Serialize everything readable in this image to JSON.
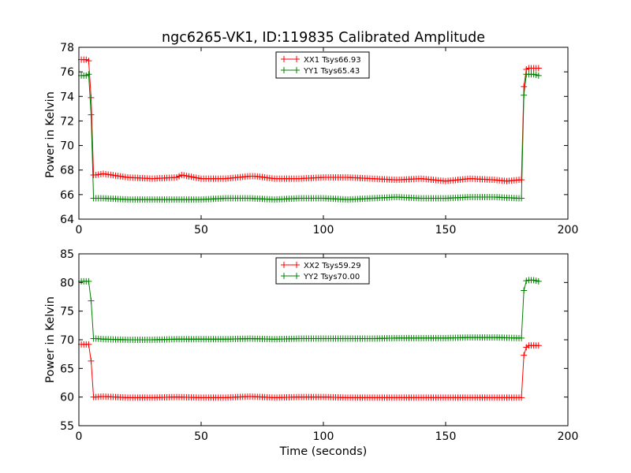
{
  "chart_data": {
    "title": "ngc6265-VK1, ID:119835 Calibrated Amplitude",
    "xlabel": "Time (seconds)",
    "panels": [
      {
        "type": "line",
        "ylabel": "Power in Kelvin",
        "xlim": [
          0,
          200
        ],
        "ylim": [
          64,
          78
        ],
        "xticks": [
          "0",
          "50",
          "100",
          "150",
          "200"
        ],
        "yticks": [
          "64",
          "66",
          "68",
          "70",
          "72",
          "74",
          "76",
          "78"
        ],
        "legend_position": "top-center",
        "series": [
          {
            "name": "XX1 Tsys66.93",
            "color": "#ff0000",
            "marker": "plus",
            "segments": [
              {
                "x": [
                  1,
                  2,
                  3,
                  4,
                  5,
                  6
                ],
                "y": [
                  77.0,
                  77.0,
                  77.0,
                  76.9,
                  73.9,
                  67.6
                ]
              },
              {
                "x": [
                  7,
                  10,
                  20,
                  30,
                  40,
                  42,
                  50,
                  60,
                  70,
                  72,
                  80,
                  90,
                  100,
                  110,
                  120,
                  130,
                  140,
                  150,
                  160,
                  170,
                  175,
                  180
                ],
                "y": [
                  67.6,
                  67.7,
                  67.4,
                  67.3,
                  67.4,
                  67.6,
                  67.3,
                  67.3,
                  67.5,
                  67.5,
                  67.3,
                  67.3,
                  67.4,
                  67.4,
                  67.3,
                  67.2,
                  67.3,
                  67.1,
                  67.3,
                  67.2,
                  67.1,
                  67.2
                ]
              },
              {
                "x": [
                  181,
                  182,
                  183,
                  184,
                  186,
                  188
                ],
                "y": [
                  67.2,
                  74.8,
                  76.2,
                  76.3,
                  76.3,
                  76.3
                ]
              }
            ]
          },
          {
            "name": "YY1 Tsys65.43",
            "color": "#008000",
            "marker": "plus",
            "segments": [
              {
                "x": [
                  1,
                  2,
                  3,
                  4,
                  5,
                  6
                ],
                "y": [
                  75.7,
                  75.7,
                  75.7,
                  75.8,
                  72.5,
                  65.7
                ]
              },
              {
                "x": [
                  7,
                  10,
                  20,
                  30,
                  40,
                  50,
                  60,
                  70,
                  80,
                  90,
                  100,
                  110,
                  120,
                  130,
                  140,
                  150,
                  160,
                  170,
                  180
                ],
                "y": [
                  65.7,
                  65.7,
                  65.6,
                  65.6,
                  65.6,
                  65.6,
                  65.7,
                  65.7,
                  65.6,
                  65.7,
                  65.7,
                  65.6,
                  65.7,
                  65.8,
                  65.7,
                  65.7,
                  65.8,
                  65.8,
                  65.7
                ]
              },
              {
                "x": [
                  181,
                  182,
                  183,
                  184,
                  186,
                  188
                ],
                "y": [
                  65.7,
                  74.1,
                  75.8,
                  75.8,
                  75.8,
                  75.7
                ]
              }
            ]
          }
        ]
      },
      {
        "type": "line",
        "ylabel": "Power in Kelvin",
        "xlabel": "Time (seconds)",
        "xlim": [
          0,
          200
        ],
        "ylim": [
          55,
          85
        ],
        "xticks": [
          "0",
          "50",
          "100",
          "150",
          "200"
        ],
        "yticks": [
          "55",
          "60",
          "65",
          "70",
          "75",
          "80",
          "85"
        ],
        "legend_position": "top-center",
        "series": [
          {
            "name": "XX2 Tsys59.29",
            "color": "#ff0000",
            "marker": "plus",
            "segments": [
              {
                "x": [
                  1,
                  2,
                  3,
                  4,
                  5,
                  6
                ],
                "y": [
                  69.2,
                  69.2,
                  69.2,
                  69.2,
                  66.3,
                  60.0
                ]
              },
              {
                "x": [
                  7,
                  10,
                  20,
                  30,
                  40,
                  50,
                  60,
                  70,
                  80,
                  90,
                  100,
                  110,
                  120,
                  130,
                  140,
                  150,
                  160,
                  170,
                  180
                ],
                "y": [
                  60.0,
                  60.1,
                  59.9,
                  59.9,
                  60.0,
                  59.9,
                  59.9,
                  60.1,
                  59.9,
                  60.0,
                  60.0,
                  59.9,
                  59.9,
                  59.9,
                  59.9,
                  59.9,
                  59.9,
                  59.9,
                  59.9
                ]
              },
              {
                "x": [
                  181,
                  182,
                  183,
                  184,
                  186,
                  188
                ],
                "y": [
                  59.9,
                  67.3,
                  68.7,
                  69.0,
                  69.0,
                  69.0
                ]
              }
            ]
          },
          {
            "name": "YY2 Tsys70.00",
            "color": "#008000",
            "marker": "plus",
            "segments": [
              {
                "x": [
                  1,
                  2,
                  3,
                  4,
                  5,
                  6
                ],
                "y": [
                  80.2,
                  80.2,
                  80.2,
                  80.2,
                  76.8,
                  70.2
                ]
              },
              {
                "x": [
                  7,
                  10,
                  20,
                  30,
                  40,
                  50,
                  60,
                  70,
                  80,
                  90,
                  100,
                  110,
                  120,
                  130,
                  140,
                  150,
                  160,
                  170,
                  180
                ],
                "y": [
                  70.2,
                  70.1,
                  70.0,
                  70.0,
                  70.1,
                  70.1,
                  70.1,
                  70.2,
                  70.1,
                  70.2,
                  70.2,
                  70.2,
                  70.2,
                  70.3,
                  70.3,
                  70.3,
                  70.4,
                  70.4,
                  70.3
                ]
              },
              {
                "x": [
                  181,
                  182,
                  183,
                  184,
                  186,
                  188
                ],
                "y": [
                  70.3,
                  78.6,
                  80.3,
                  80.4,
                  80.4,
                  80.2
                ]
              }
            ]
          }
        ]
      }
    ]
  }
}
